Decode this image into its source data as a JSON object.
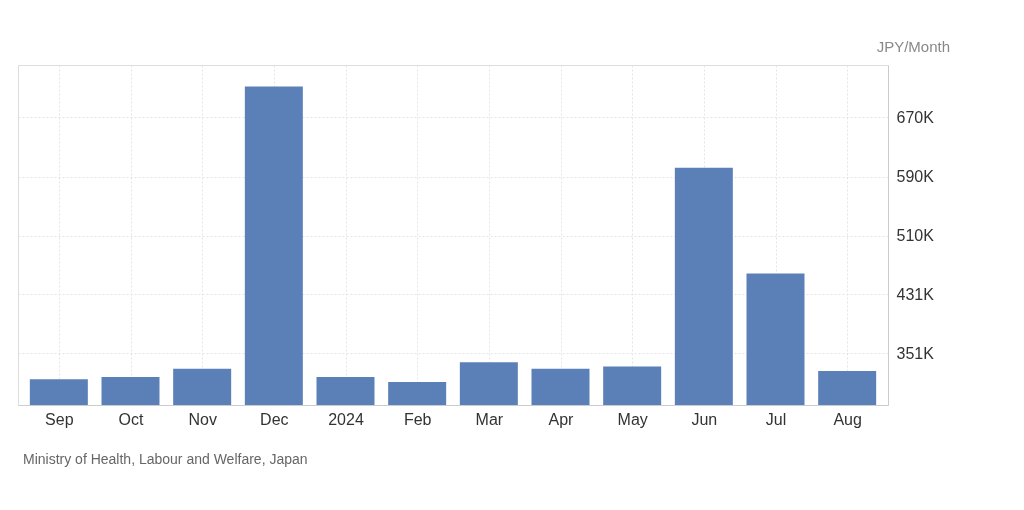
{
  "chart_data": {
    "type": "bar",
    "ylabel": "JPY/Month",
    "categories": [
      "Sep",
      "Oct",
      "Nov",
      "Dec",
      "2024",
      "Feb",
      "Mar",
      "Apr",
      "May",
      "Jun",
      "Jul",
      "Aug"
    ],
    "values": [
      316000,
      319000,
      330000,
      712000,
      319000,
      312000,
      339000,
      330000,
      333000,
      602000,
      459000,
      327000
    ],
    "color": "#5b80b8",
    "ylim": [
      281000,
      741000
    ],
    "yticks": [
      {
        "value": 351000,
        "label": "351K"
      },
      {
        "value": 431000,
        "label": "431K"
      },
      {
        "value": 510000,
        "label": "510K"
      },
      {
        "value": 590000,
        "label": "590K"
      },
      {
        "value": 670000,
        "label": "670K"
      }
    ],
    "grid": true,
    "annotations": [
      "Ministry of Health, Labour and Welfare, Japan"
    ]
  }
}
